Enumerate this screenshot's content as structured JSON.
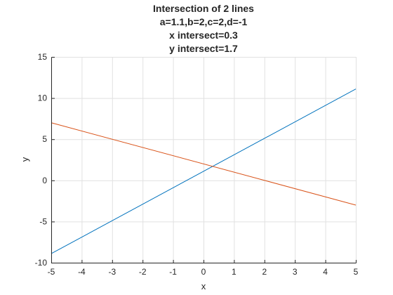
{
  "chart_data": {
    "type": "line",
    "title_lines": [
      "Intersection of 2 lines",
      "a=1.1,b=2,c=2,d=-1",
      "x intersect=0.3",
      "y intersect=1.7"
    ],
    "xlabel": "x",
    "ylabel": "y",
    "xlim": [
      -5,
      5
    ],
    "ylim": [
      -10,
      15
    ],
    "xticks": [
      -5,
      -4,
      -3,
      -2,
      -1,
      0,
      1,
      2,
      3,
      4,
      5
    ],
    "yticks": [
      -10,
      -5,
      0,
      5,
      10,
      15
    ],
    "grid": true,
    "series": [
      {
        "color": "#0072BD",
        "x": [
          -5,
          5
        ],
        "y": [
          -8.9,
          11.1
        ]
      },
      {
        "color": "#D95319",
        "x": [
          -5,
          5
        ],
        "y": [
          7,
          -3
        ]
      }
    ]
  }
}
